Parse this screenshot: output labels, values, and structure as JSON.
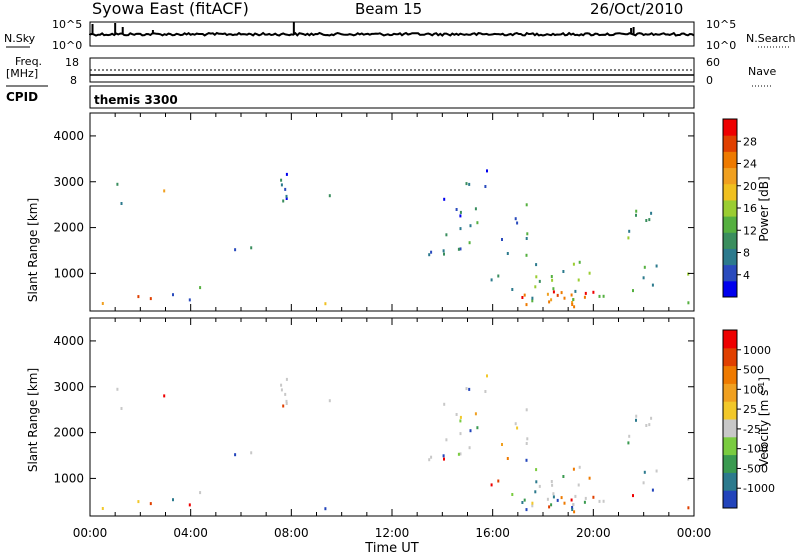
{
  "header": {
    "station": "Syowa East (fitACF)",
    "beam": "Beam 15",
    "date": "26/Oct/2010"
  },
  "panels": {
    "nsky": {
      "label": "N.Sky",
      "right_label": "N.Search",
      "left_ticks": [
        "10^5",
        "10^0"
      ],
      "right_ticks": [
        "10^5",
        "10^0"
      ]
    },
    "freq": {
      "label_top": "Freq.",
      "label_unit": "[MHz]",
      "left_ticks": [
        "18",
        "8"
      ],
      "right_ticks": [
        "60",
        "0"
      ],
      "right_label": "Nave"
    },
    "cpid": {
      "label": "CPID",
      "value": "themis 3300"
    },
    "power": {
      "ylabel": "Slant Range [km]",
      "colorbar_label": "Power [dB]",
      "colorbar_ticks": [
        "28",
        "24",
        "20",
        "16",
        "12",
        "8",
        "4"
      ],
      "colors": [
        "#0000ee",
        "#2a4bbd",
        "#2c7a8d",
        "#3a8e5e",
        "#55b040",
        "#9acd32",
        "#f0c020",
        "#f0a020",
        "#ee7a00",
        "#e04000",
        "#ee0000"
      ]
    },
    "velocity": {
      "ylabel": "Slant Range [km]",
      "colorbar_label": "Velocity [m s^-1]",
      "colorbar_ticks": [
        "1000",
        "500",
        "100",
        "25",
        "-25",
        "-100",
        "-500",
        "-1000"
      ],
      "colors": [
        "#2244bb",
        "#2c7a8d",
        "#3a9a50",
        "#7acc40",
        "#c8c8c8",
        "#f2c82a",
        "#f0a020",
        "#ee7a00",
        "#e04000",
        "#ee0000"
      ]
    }
  },
  "chart_data": {
    "type": "heatmap",
    "xlabel": "Time UT",
    "x_ticks": [
      "00:00",
      "04:00",
      "08:00",
      "12:00",
      "16:00",
      "20:00",
      "00:00"
    ],
    "y_ticks": [
      "1000",
      "2000",
      "3000",
      "4000"
    ],
    "ylim_km": [
      180,
      4500
    ],
    "xlim_hours": [
      0,
      24
    ],
    "scatter_regions": [
      {
        "t0": 0.2,
        "t1": 0.6,
        "r0": 200,
        "r1": 500,
        "density": 0.55,
        "power": 18
      },
      {
        "t0": 1.0,
        "t1": 1.3,
        "r0": 300,
        "r1": 3400,
        "density": 0.1,
        "power": 10
      },
      {
        "t0": 1.8,
        "t1": 2.6,
        "r0": 200,
        "r1": 500,
        "density": 0.45,
        "power": 22
      },
      {
        "t0": 2.8,
        "t1": 3.1,
        "r0": 1800,
        "r1": 3300,
        "density": 0.12,
        "power": 20
      },
      {
        "t0": 3.2,
        "t1": 5.0,
        "r0": 200,
        "r1": 700,
        "density": 0.15,
        "power": 8
      },
      {
        "t0": 5.0,
        "t1": 8.3,
        "r0": 1300,
        "r1": 1600,
        "density": 0.08,
        "power": 7
      },
      {
        "t0": 7.5,
        "t1": 8.5,
        "r0": 2400,
        "r1": 3300,
        "density": 0.35,
        "power": 6
      },
      {
        "t0": 9.3,
        "t1": 9.5,
        "r0": 200,
        "r1": 3300,
        "density": 0.15,
        "power": 14
      },
      {
        "t0": 13.3,
        "t1": 14.8,
        "r0": 1300,
        "r1": 1600,
        "density": 0.55,
        "power": 5
      },
      {
        "t0": 14.0,
        "t1": 15.8,
        "r0": 1600,
        "r1": 3300,
        "density": 0.2,
        "power": 6
      },
      {
        "t0": 15.8,
        "t1": 17.5,
        "r0": 600,
        "r1": 2500,
        "density": 0.15,
        "power": 8
      },
      {
        "t0": 16.8,
        "t1": 20.0,
        "r0": 250,
        "r1": 600,
        "density": 0.7,
        "power": 26
      },
      {
        "t0": 17.5,
        "t1": 20.7,
        "r0": 400,
        "r1": 1300,
        "density": 0.3,
        "power": 12
      },
      {
        "t0": 21.3,
        "t1": 22.5,
        "r0": 300,
        "r1": 2500,
        "density": 0.2,
        "power": 10
      },
      {
        "t0": 23.6,
        "t1": 23.8,
        "r0": 300,
        "r1": 3300,
        "density": 0.15,
        "power": 12
      }
    ]
  }
}
